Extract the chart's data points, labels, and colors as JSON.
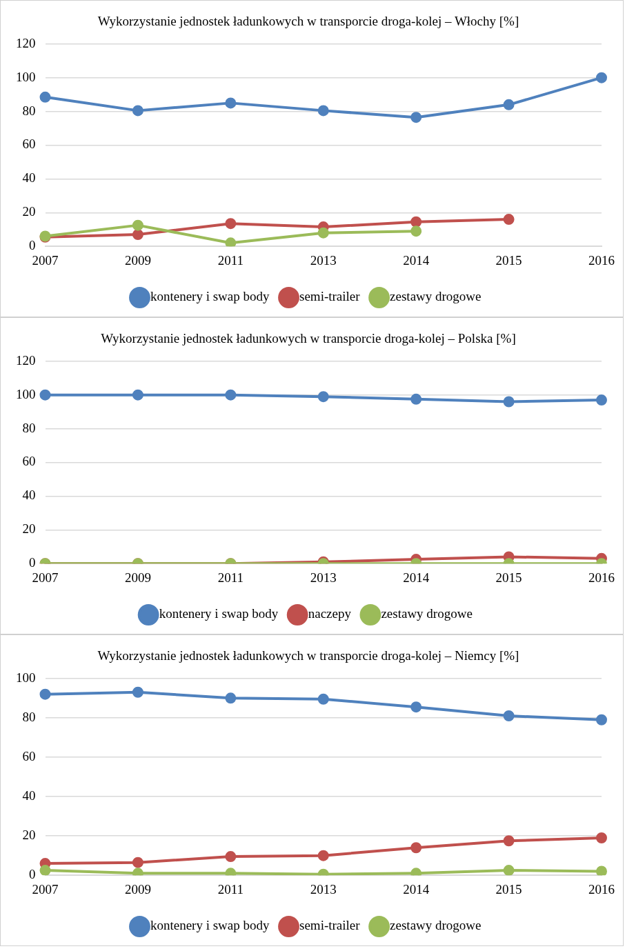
{
  "chart_data": [
    {
      "type": "line",
      "title": "Wykorzystanie jednostek ładunkowych w transporcie droga-kolej – Włochy [%]",
      "categories": [
        "2007",
        "2009",
        "2011",
        "2013",
        "2014",
        "2015",
        "2016"
      ],
      "ylim": [
        0,
        120
      ],
      "yticks": [
        0,
        20,
        40,
        60,
        80,
        100,
        120
      ],
      "grid": "y",
      "legend": "bottom",
      "marker": "circle",
      "line_style": "solid",
      "series": [
        {
          "name": "kontenery i swap body",
          "color": "#4f81bd",
          "values": [
            88.5,
            80.5,
            85,
            80.5,
            76.5,
            84,
            100
          ]
        },
        {
          "name": "semi-trailer",
          "color": "#c0504d",
          "values": [
            5.5,
            7,
            13.5,
            11.5,
            14.5,
            16,
            null
          ]
        },
        {
          "name": "zestawy drogowe",
          "color": "#9bbb59",
          "values": [
            6,
            12.5,
            2,
            8,
            9,
            null,
            null
          ]
        }
      ]
    },
    {
      "type": "line",
      "title": "Wykorzystanie jednostek ładunkowych w transporcie droga-kolej – Polska [%]",
      "categories": [
        "2007",
        "2009",
        "2011",
        "2013",
        "2014",
        "2015",
        "2016"
      ],
      "ylim": [
        0,
        120
      ],
      "yticks": [
        0,
        20,
        40,
        60,
        80,
        100,
        120
      ],
      "grid": "y",
      "legend": "bottom",
      "marker": "circle",
      "line_style": "solid",
      "series": [
        {
          "name": "kontenery i swap body",
          "color": "#4f81bd",
          "values": [
            100,
            100,
            100,
            99,
            97.5,
            96,
            97
          ]
        },
        {
          "name": "naczepy",
          "color": "#c0504d",
          "values": [
            0,
            0,
            0,
            1,
            2.5,
            4,
            3
          ]
        },
        {
          "name": "zestawy drogowe",
          "color": "#9bbb59",
          "values": [
            0,
            0,
            0,
            0,
            0,
            0,
            0
          ]
        }
      ]
    },
    {
      "type": "line",
      "title": "Wykorzystanie jednostek ładunkowych w transporcie droga-kolej – Niemcy [%]",
      "categories": [
        "2007",
        "2009",
        "2011",
        "2013",
        "2014",
        "2015",
        "2016"
      ],
      "ylim": [
        0,
        100
      ],
      "yticks": [
        0,
        20,
        40,
        60,
        80,
        100
      ],
      "grid": "y",
      "legend": "bottom",
      "marker": "circle",
      "line_style": "solid",
      "series": [
        {
          "name": "kontenery i swap body",
          "color": "#4f81bd",
          "values": [
            92,
            93,
            90,
            89.5,
            85.5,
            81,
            79
          ]
        },
        {
          "name": "semi-trailer",
          "color": "#c0504d",
          "values": [
            6,
            6.5,
            9.5,
            10,
            14,
            17.5,
            19
          ]
        },
        {
          "name": "zestawy drogowe",
          "color": "#9bbb59",
          "values": [
            2.5,
            1,
            1,
            0.5,
            1,
            2.5,
            2
          ]
        }
      ]
    }
  ]
}
